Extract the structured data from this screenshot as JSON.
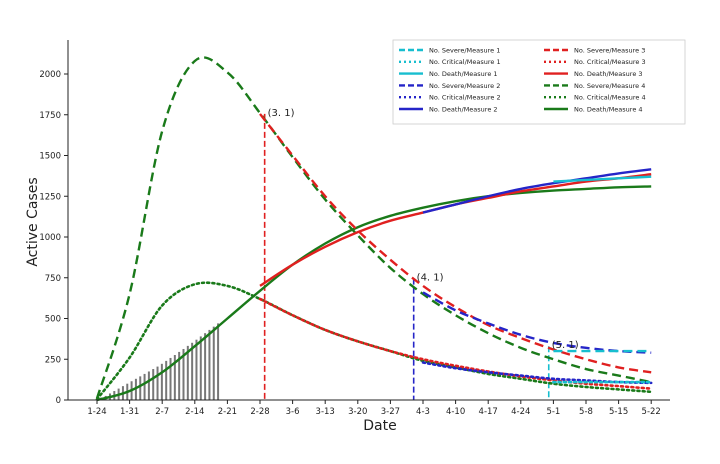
{
  "chart_data": {
    "type": "line",
    "xlabel": "Date",
    "ylabel": "Active Cases",
    "x_ticks": [
      "1-24",
      "1-31",
      "2-7",
      "2-14",
      "2-21",
      "2-28",
      "3-6",
      "3-13",
      "3-20",
      "3-27",
      "4-3",
      "4-10",
      "4-17",
      "4-24",
      "5-1",
      "5-8",
      "5-15",
      "5-22"
    ],
    "y_ticks": [
      "0",
      "250",
      "500",
      "750",
      "1000",
      "1250",
      "1500",
      "1750",
      "2000"
    ],
    "ylim": [
      0,
      2150
    ],
    "grid": false,
    "legend_position": "top-right",
    "series": [
      {
        "name": "No. Severe/Measure 1",
        "measure": 1,
        "kind": "severe",
        "color": "#17becf",
        "style": "dashed",
        "x": [
          "5-1",
          "5-22"
        ],
        "values": [
          300,
          300
        ]
      },
      {
        "name": "No. Critical/Measure 1",
        "measure": 1,
        "kind": "critical",
        "color": "#17becf",
        "style": "dotted",
        "x": [
          "5-1",
          "5-22"
        ],
        "values": [
          110,
          110
        ]
      },
      {
        "name": "No. Death/Measure 1",
        "measure": 1,
        "kind": "death",
        "color": "#17becf",
        "style": "solid",
        "x": [
          "5-1",
          "5-22"
        ],
        "values": [
          1340,
          1370
        ]
      },
      {
        "name": "No. Severe/Measure 2",
        "measure": 2,
        "kind": "severe",
        "color": "#2525c8",
        "style": "dashed",
        "x": [
          "4-3",
          "4-10",
          "4-17",
          "4-24",
          "5-1",
          "5-8",
          "5-15",
          "5-22"
        ],
        "values": [
          660,
          550,
          470,
          400,
          350,
          320,
          300,
          290
        ]
      },
      {
        "name": "No. Critical/Measure 2",
        "measure": 2,
        "kind": "critical",
        "color": "#2525c8",
        "style": "dotted",
        "x": [
          "4-3",
          "4-10",
          "4-17",
          "4-24",
          "5-1",
          "5-8",
          "5-15",
          "5-22"
        ],
        "values": [
          230,
          195,
          170,
          150,
          130,
          120,
          110,
          105
        ]
      },
      {
        "name": "No. Death/Measure 2",
        "measure": 2,
        "kind": "death",
        "color": "#2525c8",
        "style": "solid",
        "x": [
          "4-3",
          "4-10",
          "4-17",
          "4-24",
          "5-1",
          "5-8",
          "5-15",
          "5-22"
        ],
        "values": [
          1150,
          1200,
          1250,
          1295,
          1330,
          1360,
          1390,
          1415
        ]
      },
      {
        "name": "No. Severe/Measure 3",
        "measure": 3,
        "kind": "severe",
        "color": "#e02020",
        "style": "dashed",
        "x": [
          "2-28",
          "3-6",
          "3-13",
          "3-20",
          "3-27",
          "4-3",
          "4-10",
          "4-17",
          "4-24",
          "5-1",
          "5-8",
          "5-15",
          "5-22"
        ],
        "values": [
          1755,
          1500,
          1250,
          1040,
          860,
          700,
          570,
          460,
          380,
          310,
          250,
          200,
          170
        ]
      },
      {
        "name": "No. Critical/Measure 3",
        "measure": 3,
        "kind": "critical",
        "color": "#e02020",
        "style": "dotted",
        "x": [
          "2-28",
          "3-6",
          "3-13",
          "3-20",
          "3-27",
          "4-3",
          "4-10",
          "4-17",
          "4-24",
          "5-1",
          "5-8",
          "5-15",
          "5-22"
        ],
        "values": [
          620,
          520,
          430,
          360,
          300,
          250,
          210,
          175,
          145,
          120,
          100,
          85,
          70
        ]
      },
      {
        "name": "No. Death/Measure 3",
        "measure": 3,
        "kind": "death",
        "color": "#e02020",
        "style": "solid",
        "x": [
          "2-28",
          "3-6",
          "3-13",
          "3-20",
          "3-27",
          "4-3",
          "4-10",
          "4-17",
          "4-24",
          "5-1",
          "5-8",
          "5-15",
          "5-22"
        ],
        "values": [
          700,
          830,
          940,
          1030,
          1100,
          1150,
          1200,
          1240,
          1280,
          1310,
          1340,
          1360,
          1385
        ]
      },
      {
        "name": "No. Severe/Measure 4",
        "measure": 4,
        "kind": "severe",
        "color": "#1a7a1a",
        "style": "dashed",
        "x": [
          "1-24",
          "1-31",
          "2-7",
          "2-14",
          "2-21",
          "2-28",
          "3-6",
          "3-13",
          "3-20",
          "3-27",
          "4-3",
          "4-10",
          "4-17",
          "4-24",
          "5-1",
          "5-8",
          "5-15",
          "5-22"
        ],
        "values": [
          10,
          650,
          1650,
          2080,
          2010,
          1760,
          1490,
          1230,
          1010,
          810,
          650,
          520,
          410,
          320,
          250,
          190,
          150,
          110
        ]
      },
      {
        "name": "No. Critical/Measure 4",
        "measure": 4,
        "kind": "critical",
        "color": "#1a7a1a",
        "style": "dotted",
        "x": [
          "1-24",
          "1-31",
          "2-7",
          "2-14",
          "2-21",
          "2-28",
          "3-6",
          "3-13",
          "3-20",
          "3-27",
          "4-3",
          "4-10",
          "4-17",
          "4-24",
          "5-1",
          "5-8",
          "5-15",
          "5-22"
        ],
        "values": [
          5,
          260,
          580,
          710,
          700,
          620,
          520,
          430,
          360,
          300,
          240,
          200,
          160,
          130,
          100,
          80,
          65,
          50
        ]
      },
      {
        "name": "No. Death/Measure 4",
        "measure": 4,
        "kind": "death",
        "color": "#1a7a1a",
        "style": "solid",
        "x": [
          "1-24",
          "1-31",
          "2-7",
          "2-14",
          "2-21",
          "2-28",
          "3-6",
          "3-13",
          "3-20",
          "3-27",
          "4-3",
          "4-10",
          "4-17",
          "4-24",
          "5-1",
          "5-8",
          "5-15",
          "5-22"
        ],
        "values": [
          0,
          55,
          170,
          330,
          500,
          670,
          830,
          960,
          1060,
          1130,
          1180,
          1220,
          1250,
          1270,
          1285,
          1295,
          1305,
          1310
        ]
      }
    ],
    "observed_bars": {
      "color": "#777777",
      "x_start": "1-24",
      "x_end": "2-19",
      "values": [
        5,
        15,
        25,
        40,
        55,
        70,
        85,
        100,
        115,
        130,
        145,
        160,
        175,
        190,
        205,
        222,
        240,
        258,
        276,
        295,
        313,
        332,
        351,
        370,
        390,
        410,
        430,
        450,
        470
      ]
    },
    "annotations": [
      {
        "text": "(3. 1)",
        "x": "2-29",
        "y": 1755,
        "color": "#e02020"
      },
      {
        "text": "(4. 1)",
        "x": "4-1",
        "y": 745,
        "color": "#2525c8"
      },
      {
        "text": "(5. 1)",
        "x": "4-30",
        "y": 330,
        "color": "#17becf"
      }
    ]
  }
}
